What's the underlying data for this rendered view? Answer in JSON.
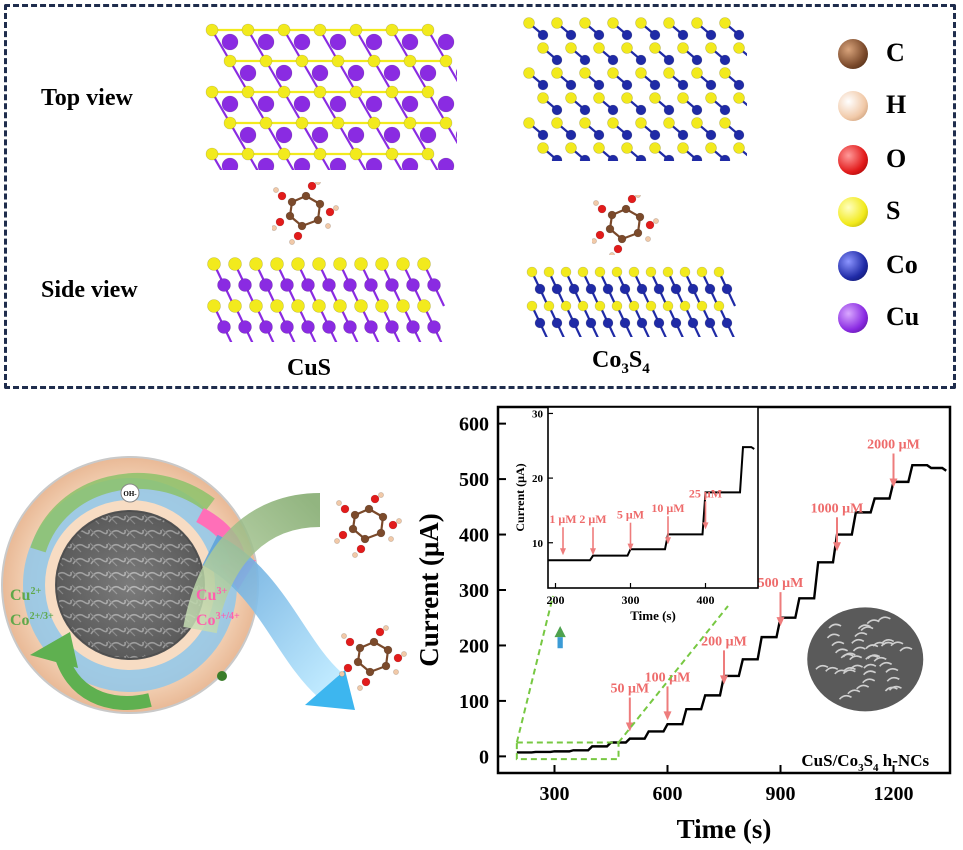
{
  "top_panel": {
    "row_labels": {
      "top": "Top view",
      "side": "Side view"
    },
    "materials": {
      "cus": "CuS",
      "co3s4_main": "Co",
      "co3s4_sub1": "3",
      "co3s4_mid": "S",
      "co3s4_sub2": "4"
    },
    "legend": [
      {
        "symbol": "C",
        "color": "#7b4a2b"
      },
      {
        "symbol": "H",
        "color": "#f1c9a8"
      },
      {
        "symbol": "O",
        "color": "#e21b1b"
      },
      {
        "symbol": "S",
        "color": "#f2ea1d"
      },
      {
        "symbol": "Co",
        "color": "#1f2aa6"
      },
      {
        "symbol": "Cu",
        "color": "#8a2be2"
      }
    ]
  },
  "schematic": {
    "oh_label": "OH-",
    "left_ion_1": "Cu2+",
    "left_ion_2": "Co2+/3+",
    "right_ion_1": "Cu3+",
    "right_ion_2": "Co3+/4+"
  },
  "chart_data": {
    "main": {
      "type": "line",
      "xlabel": "Time (s)",
      "ylabel": "Current (μA)",
      "xlim": [
        150,
        1350
      ],
      "ylim": [
        -30,
        630
      ],
      "xticks": [
        300,
        600,
        900,
        1200
      ],
      "yticks": [
        0,
        100,
        200,
        300,
        400,
        500,
        600
      ],
      "annotation_label": "CuS/Co3S4 h-NCs",
      "annotation_parts": {
        "a": "CuS/Co",
        "b": "3",
        "c": "S",
        "d": "4",
        "e": " h-NCs"
      },
      "series": [
        {
          "x": [
            200,
            250,
            300,
            350,
            400,
            450,
            500,
            550,
            600,
            650,
            700,
            750,
            800,
            850,
            900,
            950,
            1000,
            1050,
            1100,
            1150,
            1200,
            1250,
            1300,
            1340
          ],
          "y": [
            7,
            8,
            9,
            11,
            18,
            25,
            32,
            45,
            58,
            85,
            110,
            145,
            175,
            215,
            250,
            285,
            350,
            400,
            440,
            465,
            495,
            525,
            520,
            515
          ]
        }
      ],
      "annotations": [
        {
          "text": "50 μM",
          "x": 500
        },
        {
          "text": "100 μM",
          "x": 600
        },
        {
          "text": "200 μM",
          "x": 750
        },
        {
          "text": "500 μM",
          "x": 900
        },
        {
          "text": "1000 μM",
          "x": 1050
        },
        {
          "text": "2000 μM",
          "x": 1200
        }
      ]
    },
    "inset": {
      "type": "line",
      "xlabel": "Time (s)",
      "ylabel": "Current (μA)",
      "xlim": [
        190,
        470
      ],
      "ylim": [
        3,
        31
      ],
      "xticks": [
        200,
        300,
        400
      ],
      "yticks": [
        10,
        20,
        30
      ],
      "series": [
        {
          "x": [
            190,
            250,
            300,
            350,
            400,
            450,
            465
          ],
          "y": [
            7.3,
            8,
            9,
            11.3,
            17.8,
            24.8,
            24.5
          ]
        }
      ],
      "annotations": [
        {
          "text": "1 μM",
          "x": 210
        },
        {
          "text": "2 μM",
          "x": 250
        },
        {
          "text": "5 μM",
          "x": 300
        },
        {
          "text": "10 μM",
          "x": 350
        },
        {
          "text": "25 μM",
          "x": 400
        }
      ]
    }
  }
}
